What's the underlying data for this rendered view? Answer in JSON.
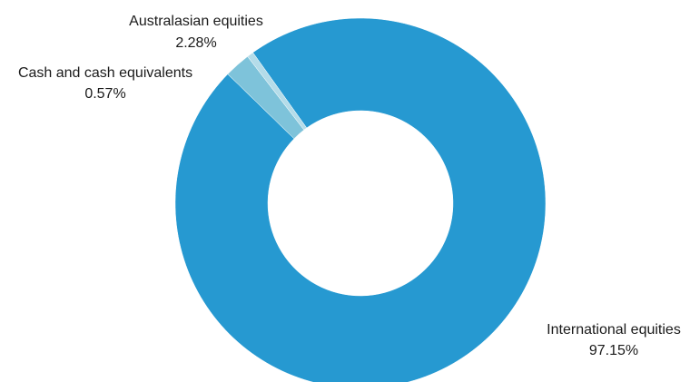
{
  "chart_data": {
    "type": "pie",
    "variant": "donut",
    "title": "",
    "categories": [
      "International equities",
      "Australasian equities",
      "Cash and cash equivalents"
    ],
    "values": [
      97.15,
      2.28,
      0.57
    ],
    "value_labels": [
      "97.15%",
      "2.28%",
      "0.57%"
    ],
    "colors": [
      "#2699d1",
      "#7ec3da",
      "#b4dce9"
    ],
    "legend": "none"
  }
}
